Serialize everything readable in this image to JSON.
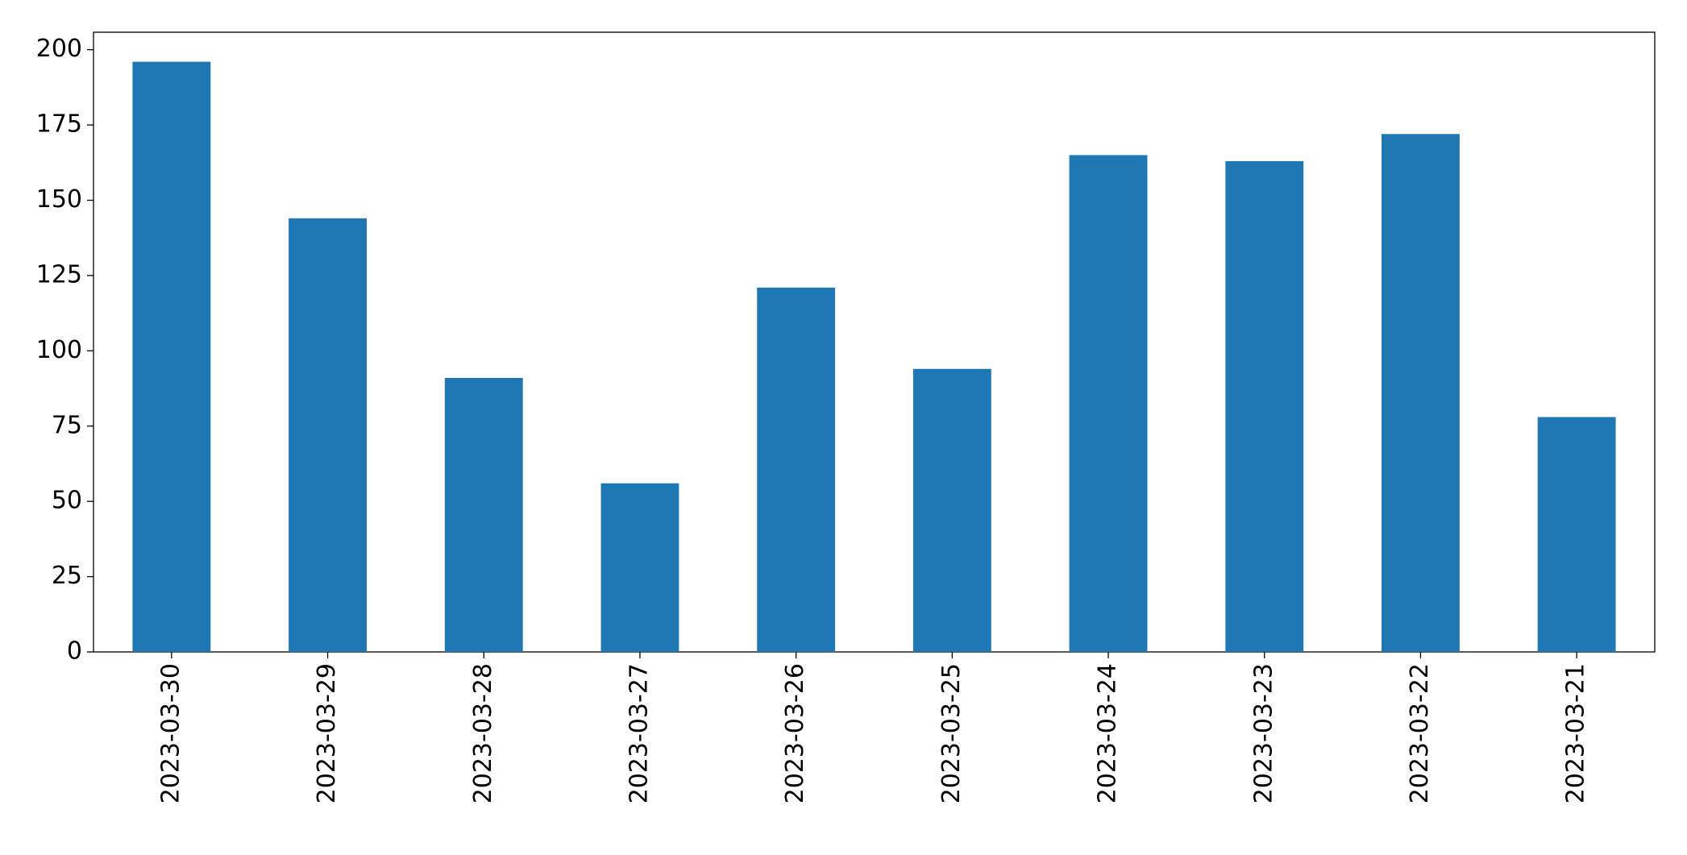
{
  "chart_data": {
    "type": "bar",
    "categories": [
      "2023-03-30",
      "2023-03-29",
      "2023-03-28",
      "2023-03-27",
      "2023-03-26",
      "2023-03-25",
      "2023-03-24",
      "2023-03-23",
      "2023-03-22",
      "2023-03-21"
    ],
    "values": [
      196,
      144,
      91,
      56,
      121,
      94,
      165,
      163,
      172,
      78
    ],
    "color": "#1f77b4",
    "ylim": [
      0,
      205.8
    ],
    "yticks": [
      0,
      25,
      50,
      75,
      100,
      125,
      150,
      175,
      200
    ],
    "grid": false
  }
}
